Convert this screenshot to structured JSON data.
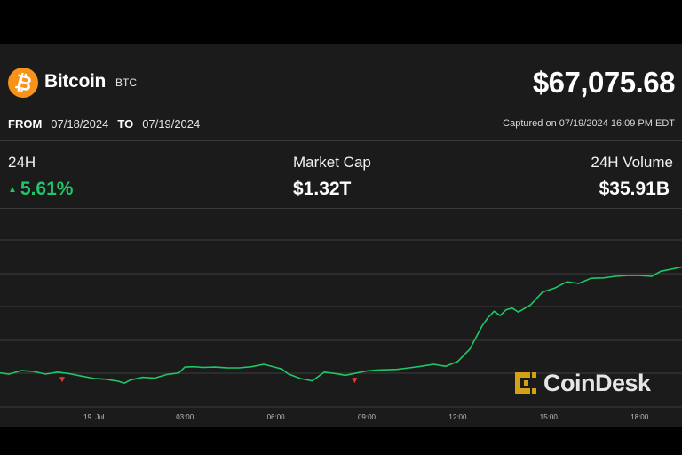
{
  "coin": {
    "name": "Bitcoin",
    "ticker": "BTC",
    "symbol": "₿",
    "price": "$67,075.68"
  },
  "range": {
    "from_label": "FROM",
    "from": "07/18/2024",
    "to_label": "TO",
    "to": "07/19/2024"
  },
  "captured": "Captured on 07/19/2024 16:09 PM EDT",
  "stats": [
    {
      "label": "24H",
      "value": "5.61%",
      "direction": "up"
    },
    {
      "label": "Market Cap",
      "value": "$1.32T"
    },
    {
      "label": "24H Volume",
      "value": "$35.91B"
    }
  ],
  "watermark": "CoinDesk",
  "colors": {
    "brand_orange": "#f7931a",
    "positive": "#1ec767",
    "negative": "#e53935",
    "line": "#1ec767",
    "watermark": "#d4a017"
  },
  "chart_data": {
    "type": "line",
    "x_unit": "hours",
    "x_tick_labels": [
      "",
      "19. Jul",
      "03:00",
      "06:00",
      "09:00",
      "12:00",
      "15:00",
      "18:00"
    ],
    "x_tick_values": [
      -2,
      1,
      4,
      7,
      10,
      13,
      16,
      19
    ],
    "y_tick_labels": [
      "",
      "",
      "",
      "",
      "",
      ""
    ],
    "ylim": [
      63000,
      67300
    ],
    "grid": true,
    "series": [
      {
        "x": [
          -2.1,
          -1.8,
          -1.4,
          -1.0,
          -0.6,
          -0.2,
          0.2,
          0.6,
          1.0,
          1.4,
          1.8,
          2.0,
          2.2,
          2.6,
          3.0,
          3.4,
          3.8,
          4.0,
          4.3,
          4.6,
          5.0,
          5.4,
          5.8,
          6.2,
          6.6,
          7.0,
          7.2,
          7.4,
          7.8,
          8.2,
          8.6,
          9.0,
          9.3,
          9.6,
          10.0,
          10.3,
          10.6,
          11.0,
          11.4,
          11.8,
          12.2,
          12.6,
          13.0,
          13.4,
          13.8,
          14.0,
          14.2,
          14.4,
          14.6,
          14.8,
          15.0,
          15.4,
          15.8,
          16.2,
          16.6,
          17.0,
          17.4,
          17.8,
          18.2,
          18.6,
          19.0,
          19.4,
          19.7,
          20.1,
          20.4
        ],
        "y": [
          63640,
          63610,
          63700,
          63680,
          63610,
          63660,
          63620,
          63560,
          63500,
          63480,
          63430,
          63380,
          63460,
          63530,
          63510,
          63600,
          63640,
          63790,
          63800,
          63780,
          63790,
          63770,
          63770,
          63800,
          63860,
          63780,
          63740,
          63620,
          63500,
          63440,
          63660,
          63620,
          63580,
          63630,
          63690,
          63710,
          63720,
          63730,
          63770,
          63810,
          63860,
          63810,
          63930,
          64250,
          64830,
          65050,
          65210,
          65100,
          65250,
          65290,
          65190,
          65370,
          65700,
          65800,
          65960,
          65920,
          66050,
          66060,
          66100,
          66120,
          66120,
          66100,
          66230,
          66290,
          66340
        ],
        "down_marker_x": [
          -0.05,
          9.6
        ],
        "down_marker_y": [
          63470,
          63450
        ]
      }
    ]
  }
}
